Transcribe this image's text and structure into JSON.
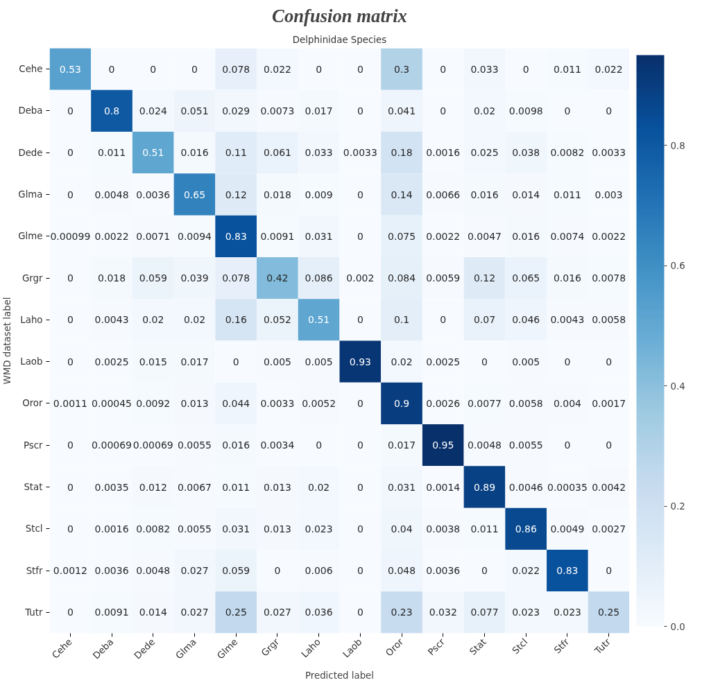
{
  "chart_data": {
    "type": "heatmap",
    "title": "Confusion matrix",
    "subtitle": "Delphinidae Species",
    "xlabel": "Predicted label",
    "ylabel": "WMD dataset label",
    "categories": [
      "Cehe",
      "Deba",
      "Dede",
      "Glma",
      "Glme",
      "Grgr",
      "Laho",
      "Laob",
      "Oror",
      "Pscr",
      "Stat",
      "Stcl",
      "Stfr",
      "Tutr"
    ],
    "y_categories": [
      "Cehe",
      "Deba",
      "Dede",
      "Glma",
      "Glme",
      "Grgr",
      "Laho",
      "Laob",
      "Oror",
      "Pscr",
      "Stat",
      "Stcl",
      "Stfr",
      "Tutr"
    ],
    "cells": [
      [
        0.53,
        0,
        0,
        0,
        0.078,
        0.022,
        0,
        0,
        0.3,
        0,
        0.033,
        0,
        0.011,
        0.022
      ],
      [
        0,
        0.8,
        0.024,
        0.051,
        0.029,
        0.0073,
        0.017,
        0,
        0.041,
        0,
        0.02,
        0.0098,
        0,
        0
      ],
      [
        0,
        0.011,
        0.51,
        0.016,
        0.11,
        0.061,
        0.033,
        0.0033,
        0.18,
        0.0016,
        0.025,
        0.038,
        0.0082,
        0.0033
      ],
      [
        0,
        0.0048,
        0.0036,
        0.65,
        0.12,
        0.018,
        0.009,
        0,
        0.14,
        0.0066,
        0.016,
        0.014,
        0.011,
        0.003
      ],
      [
        0.00099,
        0.0022,
        0.0071,
        0.0094,
        0.83,
        0.0091,
        0.031,
        0,
        0.075,
        0.0022,
        0.0047,
        0.016,
        0.0074,
        0.0022
      ],
      [
        0,
        0.018,
        0.059,
        0.039,
        0.078,
        0.42,
        0.086,
        0.002,
        0.084,
        0.0059,
        0.12,
        0.065,
        0.016,
        0.0078
      ],
      [
        0,
        0.0043,
        0.02,
        0.02,
        0.16,
        0.052,
        0.51,
        0,
        0.1,
        0,
        0.07,
        0.046,
        0.0043,
        0.0058
      ],
      [
        0,
        0.0025,
        0.015,
        0.017,
        0,
        0.005,
        0.005,
        0.93,
        0.02,
        0.0025,
        0,
        0.005,
        0,
        0
      ],
      [
        0.0011,
        0.00045,
        0.0092,
        0.013,
        0.044,
        0.0033,
        0.0052,
        0,
        0.9,
        0.0026,
        0.0077,
        0.0058,
        0.004,
        0.0017
      ],
      [
        0,
        0.00069,
        0.00069,
        0.0055,
        0.016,
        0.0034,
        0,
        0,
        0.017,
        0.95,
        0.0048,
        0.0055,
        0,
        0
      ],
      [
        0,
        0.0035,
        0.012,
        0.0067,
        0.011,
        0.013,
        0.02,
        0,
        0.031,
        0.0014,
        0.89,
        0.0046,
        0.00035,
        0.0042
      ],
      [
        0,
        0.0016,
        0.0082,
        0.0055,
        0.031,
        0.013,
        0.023,
        0,
        0.04,
        0.0038,
        0.011,
        0.86,
        0.0049,
        0.0027
      ],
      [
        0.0012,
        0.0036,
        0.0048,
        0.027,
        0.059,
        0,
        0.006,
        0,
        0.048,
        0.0036,
        0,
        0.022,
        0.83,
        0
      ],
      [
        0,
        0.0091,
        0.014,
        0.027,
        0.25,
        0.027,
        0.036,
        0,
        0.23,
        0.032,
        0.077,
        0.023,
        0.023,
        0.25
      ]
    ],
    "data_labels": true,
    "clim": [
      0,
      0.95
    ],
    "cticks": [
      {
        "value": 0,
        "label": "0.0"
      },
      {
        "value": 0.2,
        "label": "0.2"
      },
      {
        "value": 0.4,
        "label": "0.4"
      },
      {
        "value": 0.6,
        "label": "0.6"
      },
      {
        "value": 0.8,
        "label": "0.8"
      }
    ],
    "grid": false
  }
}
